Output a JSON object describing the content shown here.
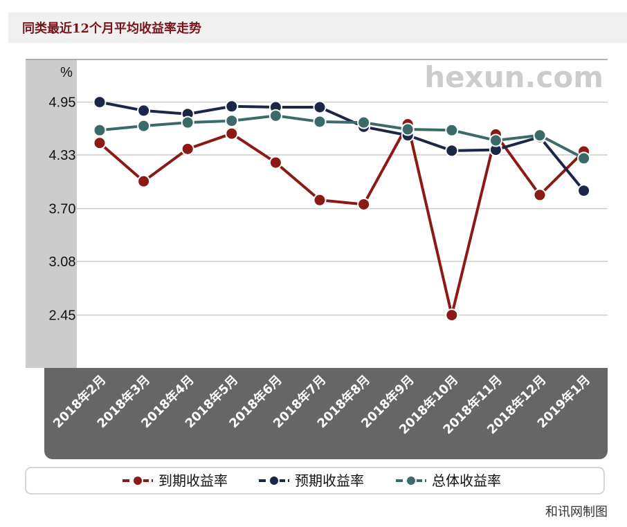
{
  "page": {
    "title": "同类最近12个月平均收益率走势",
    "watermark": "hexun.com",
    "footer": "和讯网制图"
  },
  "colors": {
    "title_text": "#7a1418",
    "title_bg": "#f0f0f0",
    "y_axis_band": "#cccccc",
    "x_axis_band": "#666666",
    "grid": "#cccccc"
  },
  "chart_data": {
    "type": "line",
    "title": "",
    "xlabel": "",
    "ylabel": "%",
    "ylim": [
      1.83,
      5.45
    ],
    "yticks": [
      "4.95",
      "4.33",
      "3.70",
      "3.08",
      "2.45"
    ],
    "grid": true,
    "legend_position": "bottom",
    "categories": [
      "2018年2月",
      "2018年3月",
      "2018年4月",
      "2018年5月",
      "2018年6月",
      "2018年7月",
      "2018年8月",
      "2018年9月",
      "2018年10月",
      "2018年11月",
      "2018年12月",
      "2019年1月"
    ],
    "series": [
      {
        "name": "到期收益率",
        "color": "#8b1a16",
        "values": [
          4.47,
          4.02,
          4.4,
          4.58,
          4.24,
          3.8,
          3.75,
          4.69,
          2.45,
          4.57,
          3.86,
          4.37
        ]
      },
      {
        "name": "预期收益率",
        "color": "#1c2646",
        "values": [
          4.95,
          4.85,
          4.81,
          4.9,
          4.89,
          4.89,
          4.66,
          4.56,
          4.38,
          4.39,
          4.54,
          3.91
        ]
      },
      {
        "name": "总体收益率",
        "color": "#3c6a68",
        "values": [
          4.62,
          4.67,
          4.71,
          4.73,
          4.79,
          4.72,
          4.71,
          4.63,
          4.62,
          4.5,
          4.56,
          4.29
        ]
      }
    ]
  }
}
